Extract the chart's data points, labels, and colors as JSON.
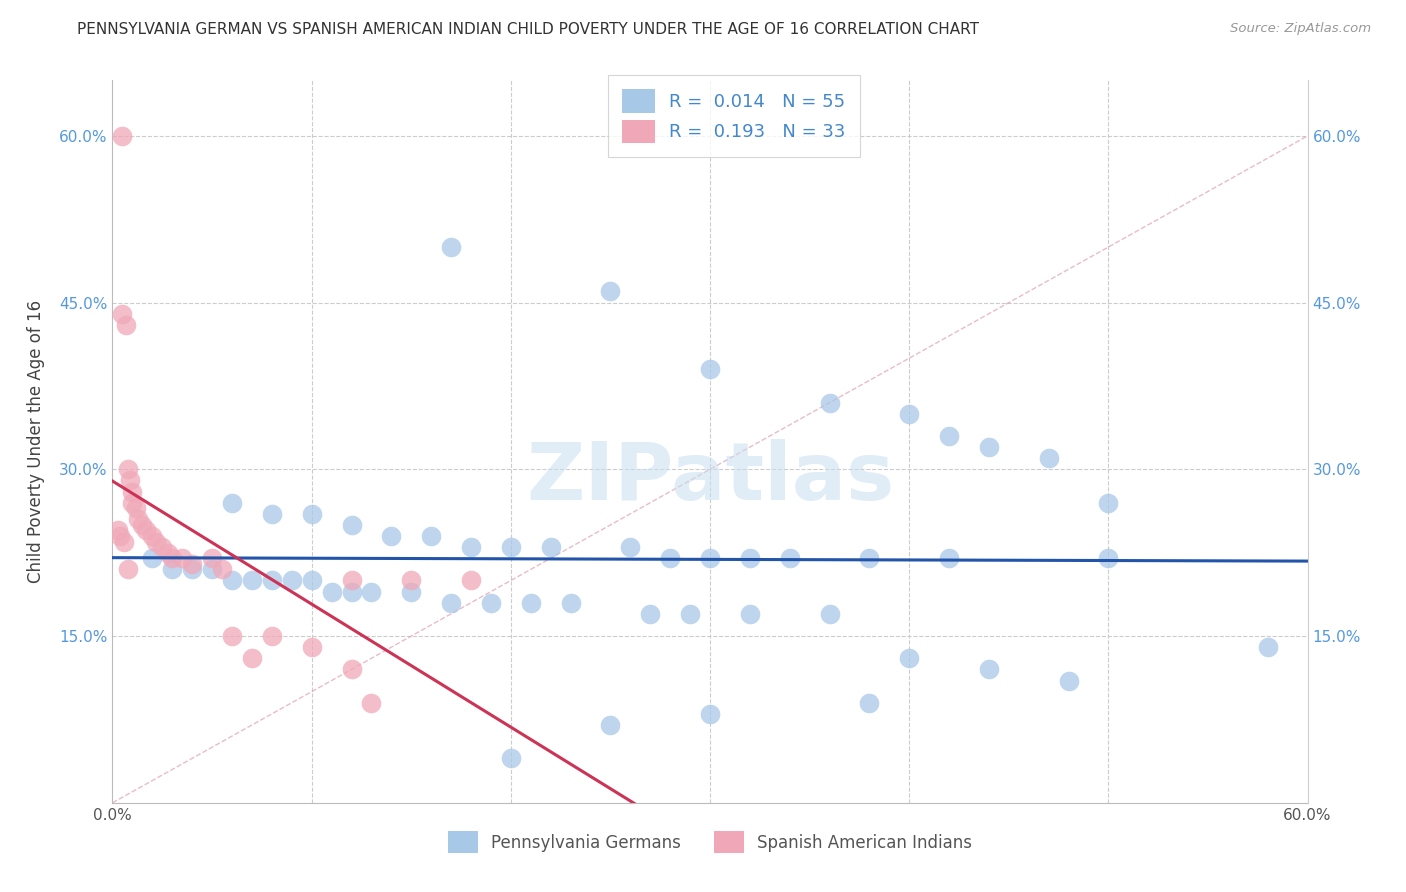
{
  "title": "PENNSYLVANIA GERMAN VS SPANISH AMERICAN INDIAN CHILD POVERTY UNDER THE AGE OF 16 CORRELATION CHART",
  "source": "Source: ZipAtlas.com",
  "ylabel": "Child Poverty Under the Age of 16",
  "xmin": 0.0,
  "xmax": 0.6,
  "ymin": 0.0,
  "ymax": 0.65,
  "yticks": [
    0.15,
    0.3,
    0.45,
    0.6
  ],
  "ytick_labels": [
    "15.0%",
    "30.0%",
    "45.0%",
    "60.0%"
  ],
  "color_blue": "#a8c8e8",
  "color_pink": "#f0a8b8",
  "line_blue": "#2255aa",
  "line_pink": "#cc3355",
  "watermark_text": "ZIPatlas",
  "label1": "Pennsylvania Germans",
  "label2": "Spanish American Indians",
  "blue_x": [
    0.17,
    0.25,
    0.3,
    0.36,
    0.4,
    0.42,
    0.44,
    0.47,
    0.5,
    0.06,
    0.08,
    0.1,
    0.12,
    0.14,
    0.16,
    0.18,
    0.2,
    0.22,
    0.26,
    0.28,
    0.3,
    0.32,
    0.34,
    0.38,
    0.42,
    0.5,
    0.58,
    0.02,
    0.03,
    0.04,
    0.05,
    0.06,
    0.07,
    0.08,
    0.09,
    0.1,
    0.11,
    0.12,
    0.13,
    0.15,
    0.17,
    0.19,
    0.21,
    0.23,
    0.27,
    0.29,
    0.32,
    0.36,
    0.4,
    0.44,
    0.48,
    0.38,
    0.3,
    0.25,
    0.2
  ],
  "blue_y": [
    0.5,
    0.46,
    0.39,
    0.36,
    0.35,
    0.33,
    0.32,
    0.31,
    0.27,
    0.27,
    0.26,
    0.26,
    0.25,
    0.24,
    0.24,
    0.23,
    0.23,
    0.23,
    0.23,
    0.22,
    0.22,
    0.22,
    0.22,
    0.22,
    0.22,
    0.22,
    0.14,
    0.22,
    0.21,
    0.21,
    0.21,
    0.2,
    0.2,
    0.2,
    0.2,
    0.2,
    0.19,
    0.19,
    0.19,
    0.19,
    0.18,
    0.18,
    0.18,
    0.18,
    0.17,
    0.17,
    0.17,
    0.17,
    0.13,
    0.12,
    0.11,
    0.09,
    0.08,
    0.07,
    0.04
  ],
  "pink_x": [
    0.005,
    0.005,
    0.007,
    0.008,
    0.009,
    0.01,
    0.01,
    0.012,
    0.013,
    0.015,
    0.017,
    0.02,
    0.022,
    0.025,
    0.028,
    0.03,
    0.035,
    0.04,
    0.05,
    0.055,
    0.06,
    0.07,
    0.08,
    0.1,
    0.12,
    0.13,
    0.15,
    0.18,
    0.003,
    0.004,
    0.006,
    0.008,
    0.12
  ],
  "pink_y": [
    0.6,
    0.44,
    0.43,
    0.3,
    0.29,
    0.28,
    0.27,
    0.265,
    0.255,
    0.25,
    0.245,
    0.24,
    0.235,
    0.23,
    0.225,
    0.22,
    0.22,
    0.215,
    0.22,
    0.21,
    0.15,
    0.13,
    0.15,
    0.14,
    0.2,
    0.09,
    0.2,
    0.2,
    0.245,
    0.24,
    0.235,
    0.21,
    0.12
  ]
}
